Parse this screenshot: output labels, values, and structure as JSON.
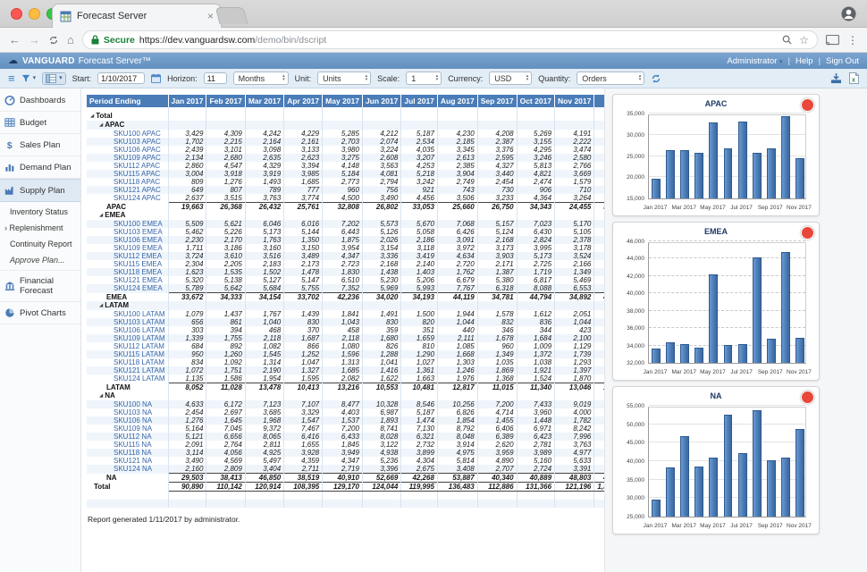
{
  "browser": {
    "tab_title": "Forecast Server",
    "secure_label": "Secure",
    "url_main": "https://dev.vanguardsw.com",
    "url_path": "/demo/bin/dscript"
  },
  "icons": {
    "expander": "◢",
    "hamburger": "≡",
    "caret_down": "▾",
    "caret_up": "▴",
    "back": "←",
    "forward": "→",
    "home": "⌂",
    "tab_close": "×",
    "star": "☆",
    "dots": "⋮",
    "cloud": "☁",
    "pipe": "|"
  },
  "app_header": {
    "brand": "VANGUARD",
    "product": "Forecast Server™",
    "user_menu": "Administrator",
    "help": "Help",
    "sign_out": "Sign Out"
  },
  "toolbar": {
    "start_label": "Start:",
    "start_value": "1/10/2017",
    "horizon_label": "Horizon:",
    "horizon_value": "11",
    "horizon_unit": "Months",
    "unit_label": "Unit:",
    "unit_value": "Units",
    "scale_label": "Scale:",
    "scale_value": "1",
    "currency_label": "Currency:",
    "currency_value": "USD",
    "quantity_label": "Quantity:",
    "quantity_value": "Orders"
  },
  "sidebar": {
    "top_items": [
      "Dashboards",
      "Budget",
      "Sales Plan",
      "Demand Plan",
      "Supply Plan"
    ],
    "supply_sub_items": [
      "Inventory Status",
      "Replenishment",
      "Continuity Report",
      "Approve Plan..."
    ],
    "bottom_items": [
      "Financial Forecast",
      "Pivot Charts"
    ]
  },
  "table": {
    "first_col_header": "Period Ending",
    "columns": [
      "Jan 2017",
      "Feb 2017",
      "Mar 2017",
      "Apr 2017",
      "May 2017",
      "Jun 2017",
      "Jul 2017",
      "Aug 2017",
      "Sep 2017",
      "Oct 2017",
      "Nov 2017",
      "Total"
    ],
    "root_label": "Total",
    "groups": [
      {
        "name": "APAC",
        "rows": [
          {
            "label": "SKU100 APAC",
            "values": [
              "3,429",
              "4,309",
              "4,242",
              "4,229",
              "5,285",
              "4,212",
              "5,187",
              "4,230",
              "4,208",
              "5,269",
              "4,191"
            ],
            "total": "48,791"
          },
          {
            "label": "SKU103 APAC",
            "values": [
              "1,702",
              "2,215",
              "2,164",
              "2,161",
              "2,703",
              "2,074",
              "2,534",
              "2,185",
              "2,387",
              "3,155",
              "2,222"
            ],
            "total": "25,502"
          },
          {
            "label": "SKU106 APAC",
            "values": [
              "2,439",
              "3,101",
              "3,098",
              "3,133",
              "3,980",
              "3,224",
              "4,035",
              "3,345",
              "3,376",
              "4,295",
              "3,474"
            ],
            "total": "37,500"
          },
          {
            "label": "SKU109 APAC",
            "values": [
              "2,134",
              "2,680",
              "2,635",
              "2,623",
              "3,275",
              "2,608",
              "3,207",
              "2,613",
              "2,595",
              "3,246",
              "2,580"
            ],
            "total": "30,196"
          },
          {
            "label": "SKU112 APAC",
            "values": [
              "2,860",
              "4,547",
              "4,329",
              "3,394",
              "4,148",
              "3,563",
              "4,253",
              "2,385",
              "4,327",
              "5,813",
              "2,766"
            ],
            "total": "42,385"
          },
          {
            "label": "SKU115 APAC",
            "values": [
              "3,004",
              "3,918",
              "3,919",
              "3,985",
              "5,184",
              "4,081",
              "5,218",
              "3,904",
              "3,440",
              "4,821",
              "3,669"
            ],
            "total": "45,143"
          },
          {
            "label": "SKU118 APAC",
            "values": [
              "809",
              "1,276",
              "1,493",
              "1,685",
              "2,773",
              "2,794",
              "3,242",
              "2,749",
              "2,454",
              "2,474",
              "1,579"
            ],
            "total": "23,328"
          },
          {
            "label": "SKU121 APAC",
            "values": [
              "649",
              "807",
              "789",
              "777",
              "960",
              "756",
              "921",
              "743",
              "730",
              "906",
              "710"
            ],
            "total": "8,748"
          },
          {
            "label": "SKU124 APAC",
            "values": [
              "2,637",
              "3,515",
              "3,763",
              "3,774",
              "4,500",
              "3,490",
              "4,456",
              "3,506",
              "3,233",
              "4,364",
              "3,264"
            ],
            "total": "40,502"
          }
        ],
        "totals": [
          "19,663",
          "26,368",
          "26,432",
          "25,761",
          "32,808",
          "26,802",
          "33,053",
          "25,660",
          "26,750",
          "34,343",
          "24,455"
        ],
        "total": "302,095"
      },
      {
        "name": "EMEA",
        "rows": [
          {
            "label": "SKU100 EMEA",
            "values": [
              "5,509",
              "5,621",
              "6,046",
              "6,016",
              "7,202",
              "5,573",
              "5,670",
              "7,068",
              "5,157",
              "7,023",
              "5,170"
            ],
            "total": "66,055"
          },
          {
            "label": "SKU103 EMEA",
            "values": [
              "5,462",
              "5,226",
              "5,173",
              "5,144",
              "6,443",
              "5,126",
              "5,058",
              "6,426",
              "5,124",
              "6,430",
              "5,105"
            ],
            "total": "60,717"
          },
          {
            "label": "SKU106 EMEA",
            "values": [
              "2,230",
              "2,170",
              "1,763",
              "1,350",
              "1,875",
              "2,026",
              "2,186",
              "3,091",
              "2,168",
              "2,824",
              "2,378"
            ],
            "total": "24,061"
          },
          {
            "label": "SKU109 EMEA",
            "values": [
              "1,711",
              "3,186",
              "3,160",
              "3,150",
              "3,954",
              "3,154",
              "3,118",
              "3,972",
              "3,173",
              "3,995",
              "3,178"
            ],
            "total": "35,751"
          },
          {
            "label": "SKU112 EMEA",
            "values": [
              "3,724",
              "3,610",
              "3,516",
              "3,489",
              "4,347",
              "3,336",
              "3,419",
              "4,634",
              "3,903",
              "5,173",
              "3,524"
            ],
            "total": "42,675"
          },
          {
            "label": "SKU115 EMEA",
            "values": [
              "2,304",
              "2,205",
              "2,183",
              "2,173",
              "2,723",
              "2,168",
              "2,140",
              "2,720",
              "2,171",
              "2,725",
              "2,166"
            ],
            "total": "25,678"
          },
          {
            "label": "SKU118 EMEA",
            "values": [
              "1,623",
              "1,535",
              "1,502",
              "1,478",
              "1,830",
              "1,438",
              "1,403",
              "1,762",
              "1,387",
              "1,719",
              "1,349"
            ],
            "total": "17,026"
          },
          {
            "label": "SKU121 EMEA",
            "values": [
              "5,320",
              "5,138",
              "5,127",
              "5,147",
              "6,510",
              "5,230",
              "5,206",
              "6,679",
              "5,380",
              "6,817",
              "5,469"
            ],
            "total": "62,023"
          },
          {
            "label": "SKU124 EMEA",
            "values": [
              "5,789",
              "5,642",
              "5,684",
              "5,755",
              "7,352",
              "5,969",
              "5,993",
              "7,767",
              "6,318",
              "8,088",
              "6,553"
            ],
            "total": "70,910"
          }
        ],
        "totals": [
          "33,672",
          "34,333",
          "34,154",
          "33,702",
          "42,236",
          "34,020",
          "34,193",
          "44,119",
          "34,781",
          "44,794",
          "34,892"
        ],
        "total": "404,896"
      },
      {
        "name": "LATAM",
        "rows": [
          {
            "label": "SKU100 LATAM",
            "values": [
              "1,079",
              "1,437",
              "1,767",
              "1,439",
              "1,841",
              "1,491",
              "1,500",
              "1,944",
              "1,578",
              "1,612",
              "2,051"
            ],
            "total": "17,739"
          },
          {
            "label": "SKU103 LATAM",
            "values": [
              "656",
              "861",
              "1,040",
              "830",
              "1,043",
              "830",
              "820",
              "1,044",
              "832",
              "836",
              "1,044"
            ],
            "total": "9,836"
          },
          {
            "label": "SKU106 LATAM",
            "values": [
              "303",
              "394",
              "468",
              "370",
              "458",
              "359",
              "351",
              "440",
              "346",
              "344",
              "423"
            ],
            "total": "4,256"
          },
          {
            "label": "SKU109 LATAM",
            "values": [
              "1,339",
              "1,755",
              "2,118",
              "1,687",
              "2,118",
              "1,680",
              "1,659",
              "2,111",
              "1,678",
              "1,684",
              "2,100"
            ],
            "total": "19,929"
          },
          {
            "label": "SKU112 LATAM",
            "values": [
              "684",
              "892",
              "1,082",
              "866",
              "1,080",
              "826",
              "810",
              "1,085",
              "960",
              "1,009",
              "1,129"
            ],
            "total": "10,423"
          },
          {
            "label": "SKU115 LATAM",
            "values": [
              "950",
              "1,260",
              "1,545",
              "1,252",
              "1,596",
              "1,288",
              "1,290",
              "1,668",
              "1,349",
              "1,372",
              "1,739"
            ],
            "total": "15,309"
          },
          {
            "label": "SKU118 LATAM",
            "values": [
              "834",
              "1,092",
              "1,314",
              "1,047",
              "1,313",
              "1,041",
              "1,027",
              "1,303",
              "1,035",
              "1,038",
              "1,293"
            ],
            "total": "12,337"
          },
          {
            "label": "SKU121 LATAM",
            "values": [
              "1,072",
              "1,751",
              "2,190",
              "1,327",
              "1,685",
              "1,416",
              "1,361",
              "1,246",
              "1,869",
              "1,921",
              "1,397"
            ],
            "total": "17,235"
          },
          {
            "label": "SKU124 LATAM",
            "values": [
              "1,135",
              "1,586",
              "1,954",
              "1,595",
              "2,082",
              "1,622",
              "1,663",
              "1,976",
              "1,368",
              "1,524",
              "1,870"
            ],
            "total": "18,375"
          }
        ],
        "totals": [
          "8,052",
          "11,028",
          "13,478",
          "10,413",
          "13,216",
          "10,553",
          "10,481",
          "12,817",
          "11,015",
          "11,340",
          "13,046"
        ],
        "total": "125,439"
      },
      {
        "name": "NA",
        "rows": [
          {
            "label": "SKU100 NA",
            "values": [
              "4,633",
              "6,172",
              "7,123",
              "7,107",
              "8,477",
              "10,328",
              "8,546",
              "10,256",
              "7,200",
              "7,433",
              "9,019"
            ],
            "total": "86,294"
          },
          {
            "label": "SKU103 NA",
            "values": [
              "2,454",
              "2,697",
              "3,685",
              "3,329",
              "4,403",
              "6,987",
              "5,187",
              "6,826",
              "4,714",
              "3,960",
              "4,000"
            ],
            "total": "48,242"
          },
          {
            "label": "SKU106 NA",
            "values": [
              "1,276",
              "1,645",
              "1,968",
              "1,547",
              "1,537",
              "1,893",
              "1,474",
              "1,854",
              "1,455",
              "1,448",
              "1,782"
            ],
            "total": "17,879"
          },
          {
            "label": "SKU109 NA",
            "values": [
              "5,164",
              "7,045",
              "9,372",
              "7,467",
              "7,200",
              "8,741",
              "7,130",
              "8,792",
              "6,406",
              "6,971",
              "8,242"
            ],
            "total": "82,530"
          },
          {
            "label": "SKU112 NA",
            "values": [
              "5,121",
              "6,656",
              "8,065",
              "6,416",
              "6,433",
              "8,028",
              "6,321",
              "8,048",
              "6,389",
              "6,423",
              "7,996"
            ],
            "total": "75,896"
          },
          {
            "label": "SKU115 NA",
            "values": [
              "2,091",
              "2,764",
              "2,811",
              "1,655",
              "1,845",
              "3,122",
              "2,732",
              "3,914",
              "2,620",
              "2,781",
              "3,763"
            ],
            "total": "30,098"
          },
          {
            "label": "SKU118 NA",
            "values": [
              "3,114",
              "4,056",
              "4,925",
              "3,928",
              "3,949",
              "4,938",
              "3,899",
              "4,975",
              "3,959",
              "3,989",
              "4,977"
            ],
            "total": "46,709"
          },
          {
            "label": "SKU121 NA",
            "values": [
              "3,490",
              "4,569",
              "5,497",
              "4,359",
              "4,347",
              "5,236",
              "4,304",
              "5,814",
              "4,890",
              "5,160",
              "5,633"
            ],
            "total": "53,299"
          },
          {
            "label": "SKU124 NA",
            "values": [
              "2,160",
              "2,809",
              "3,404",
              "2,711",
              "2,719",
              "3,396",
              "2,675",
              "3,408",
              "2,707",
              "2,724",
              "3,391"
            ],
            "total": "32,104"
          }
        ],
        "totals": [
          "29,503",
          "38,413",
          "46,850",
          "38,519",
          "40,910",
          "52,669",
          "42,268",
          "53,887",
          "40,340",
          "40,889",
          "48,803"
        ],
        "total": "473,051"
      }
    ],
    "grand_label": "Total",
    "grand_values": [
      "90,890",
      "110,142",
      "120,914",
      "108,395",
      "129,170",
      "124,044",
      "119,995",
      "136,483",
      "112,886",
      "131,366",
      "121,196"
    ],
    "grand_total": "1,305,481"
  },
  "footer": {
    "text": "Report generated 1/11/2017 by administrator."
  },
  "chart_data": [
    {
      "type": "bar",
      "title": "APAC",
      "x": [
        "Jan 2017",
        "Feb 2017",
        "Mar 2017",
        "Apr 2017",
        "May 2017",
        "Jun 2017",
        "Jul 2017",
        "Aug 2017",
        "Sep 2017",
        "Oct 2017",
        "Nov 2017"
      ],
      "values": [
        19663,
        26368,
        26432,
        25761,
        32808,
        26802,
        33053,
        25660,
        26750,
        34343,
        24455
      ],
      "ylim": [
        15000,
        35000
      ],
      "ystep": 5000,
      "grid": "solid",
      "bar_color": "#4f81bd",
      "x_tick_labels": [
        "Jan 2017",
        "Mar 2017",
        "May 2017",
        "Jul 2017",
        "Sep 2017",
        "Nov 2017"
      ],
      "legend": "none"
    },
    {
      "type": "bar",
      "title": "EMEA",
      "x": [
        "Jan 2017",
        "Feb 2017",
        "Mar 2017",
        "Apr 2017",
        "May 2017",
        "Jun 2017",
        "Jul 2017",
        "Aug 2017",
        "Sep 2017",
        "Oct 2017",
        "Nov 2017"
      ],
      "values": [
        33672,
        34333,
        34154,
        33702,
        42236,
        34020,
        34193,
        44119,
        34781,
        44794,
        34892
      ],
      "ylim": [
        32000,
        46000
      ],
      "ystep": 2000,
      "grid": "dashed",
      "bar_color": "#4f81bd",
      "x_tick_labels": [
        "Jan 2017",
        "Mar 2017",
        "May 2017",
        "Jul 2017",
        "Sep 2017",
        "Nov 2017"
      ],
      "legend": "none"
    },
    {
      "type": "bar",
      "title": "NA",
      "x": [
        "Jan 2017",
        "Feb 2017",
        "Mar 2017",
        "Apr 2017",
        "May 2017",
        "Jun 2017",
        "Jul 2017",
        "Aug 2017",
        "Sep 2017",
        "Oct 2017",
        "Nov 2017"
      ],
      "values": [
        29503,
        38413,
        46850,
        38519,
        40910,
        52669,
        42268,
        53887,
        40340,
        40889,
        48803
      ],
      "ylim": [
        25000,
        55000
      ],
      "ystep": 5000,
      "grid": "solid",
      "bar_color": "#4f81bd",
      "x_tick_labels": [
        "Jan 2017",
        "Mar 2017",
        "May 2017",
        "Jul 2017",
        "Sep 2017",
        "Nov 2017"
      ],
      "legend": "none"
    }
  ]
}
